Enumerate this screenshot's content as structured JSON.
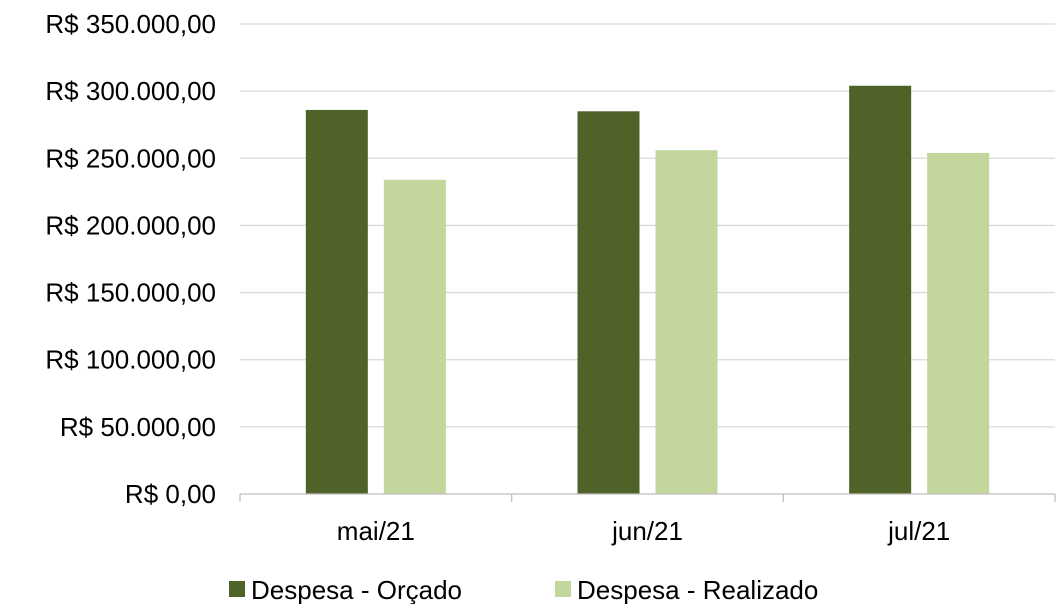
{
  "chart_data": {
    "type": "bar",
    "title": "",
    "xlabel": "",
    "ylabel": "",
    "categories": [
      "mai/21",
      "jun/21",
      "jul/21"
    ],
    "series": [
      {
        "name": "Despesa - Orçado",
        "color": "#4f6228",
        "values": [
          286000,
          285000,
          304000
        ]
      },
      {
        "name": "Despesa - Realizado",
        "color": "#c3d69b",
        "values": [
          234000,
          256000,
          254000
        ]
      }
    ],
    "ylim": [
      0,
      350000
    ],
    "yticks": [
      0,
      50000,
      100000,
      150000,
      200000,
      250000,
      300000,
      350000
    ],
    "ytick_labels": [
      "R$ 0,00",
      "R$ 50.000,00",
      "R$ 100.000,00",
      "R$ 150.000,00",
      "R$ 200.000,00",
      "R$ 250.000,00",
      "R$ 300.000,00",
      "R$ 350.000,00"
    ],
    "grid": true,
    "legend_position": "bottom"
  }
}
